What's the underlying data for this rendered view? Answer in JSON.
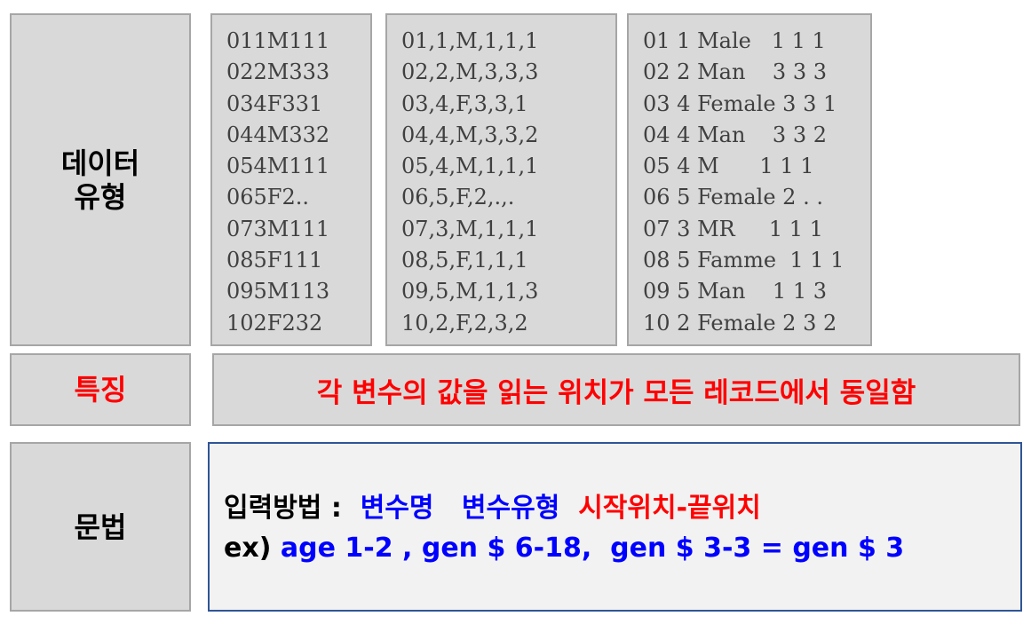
{
  "data_type": {
    "label_line1": "데이터",
    "label_line2": "유형",
    "column_fixed": [
      "011M111",
      "022M333",
      "034F331",
      "044M332",
      "054M111",
      "065F2..",
      "073M111",
      "085F111",
      "095M113",
      "102F232"
    ],
    "column_comma": [
      "01,1,M,1,1,1",
      "02,2,M,3,3,3",
      "03,4,F,3,3,1",
      "04,4,M,3,3,2",
      "05,4,M,1,1,1",
      "06,5,F,2,.,.",
      "07,3,M,1,1,1",
      "08,5,F,1,1,1",
      "09,5,M,1,1,3",
      "10,2,F,2,3,2"
    ],
    "column_space": [
      "01 1 Male   1 1 1",
      "02 2 Man    3 3 3",
      "03 4 Female 3 3 1",
      "04 4 Man    3 3 2",
      "05 4 M      1 1 1",
      "06 5 Female 2 . .",
      "07 3 MR     1 1 1",
      "08 5 Famme  1 1 1",
      "09 5 Man    1 1 3",
      "10 2 Female 2 3 2"
    ]
  },
  "feature": {
    "label": "특징",
    "text": "각 변수의 값을 읽는 위치가 모든 레코드에서 동일함"
  },
  "syntax": {
    "label": "문법",
    "line1_prefix": "입력방법 :  ",
    "line1_var_name": "변수명",
    "line1_gap": "   ",
    "line1_var_type": "변수유형",
    "line1_gap2": "  ",
    "line1_position": "시작위치-끝위치",
    "line2_prefix": "ex) ",
    "line2_example": "age 1-2 , gen $ 6-18,  gen $ 3-3 = gen $ 3"
  },
  "colors": {
    "label_background": "#d9d9d9",
    "border": "#a6a6a6",
    "syntax_border": "#2f5597",
    "highlight_red": "#ff0000",
    "highlight_blue": "#0000ff"
  }
}
